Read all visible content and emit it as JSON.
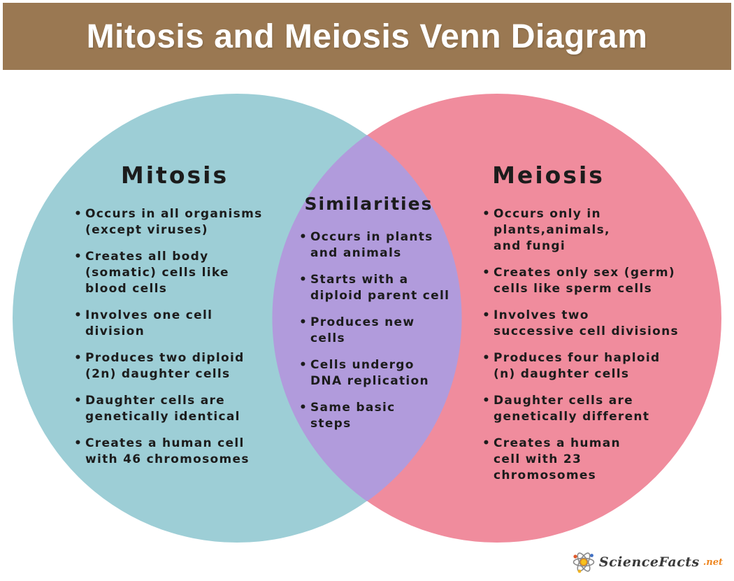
{
  "header": {
    "title": "Mitosis and Meiosis Venn Diagram",
    "bg_color": "#9a7852",
    "text_color": "#ffffff"
  },
  "venn": {
    "left": {
      "title": "Mitosis",
      "color": "#9dced6",
      "items": [
        "Occurs in all organisms\n(except viruses)",
        "Creates all body\n(somatic) cells like\nblood cells",
        "Involves one cell\ndivision",
        "Produces two diploid\n(2n) daughter cells",
        "Daughter cells are\ngenetically identical",
        "Creates a human cell\nwith 46 chromosomes"
      ]
    },
    "overlap": {
      "title": "Similarities",
      "color": "#b19bdc",
      "items": [
        "Occurs in plants\nand animals",
        "Starts with a\ndiploid parent cell",
        "Produces new\ncells",
        "Cells undergo\nDNA replication",
        "Same basic\nsteps"
      ]
    },
    "right": {
      "title": "Meiosis",
      "color": "#f08c9d",
      "items": [
        "Occurs only in\nplants,animals,\nand fungi",
        "Creates only sex (germ)\ncells like sperm cells",
        "Involves two\nsuccessive cell divisions",
        "Produces four haploid\n(n) daughter cells",
        "Daughter cells are\ngenetically different",
        "Creates a human\ncell with 23\nchromosomes"
      ]
    },
    "text_color": "#1c1c1c"
  },
  "footer": {
    "brand": "ScienceFacts",
    "tld": ".net",
    "brand_color": "#3a3a3a",
    "tld_color": "#ee8722"
  }
}
